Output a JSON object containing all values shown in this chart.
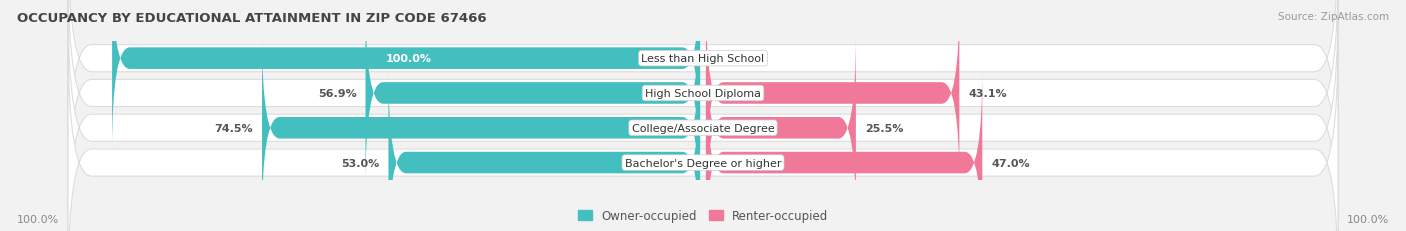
{
  "title": "OCCUPANCY BY EDUCATIONAL ATTAINMENT IN ZIP CODE 67466",
  "source": "Source: ZipAtlas.com",
  "categories": [
    "Less than High School",
    "High School Diploma",
    "College/Associate Degree",
    "Bachelor's Degree or higher"
  ],
  "owner_pct": [
    100.0,
    56.9,
    74.5,
    53.0
  ],
  "renter_pct": [
    0.0,
    43.1,
    25.5,
    47.0
  ],
  "owner_color": "#43BFC0",
  "renter_color": "#F07898",
  "bg_color": "#F2F2F2",
  "row_bg_color": "#FFFFFF",
  "row_border_color": "#DDDDDD",
  "text_color": "#555555",
  "bar_height": 0.62,
  "x_left_label": "100.0%",
  "x_right_label": "100.0%",
  "legend_owner": "Owner-occupied",
  "legend_renter": "Renter-occupied"
}
